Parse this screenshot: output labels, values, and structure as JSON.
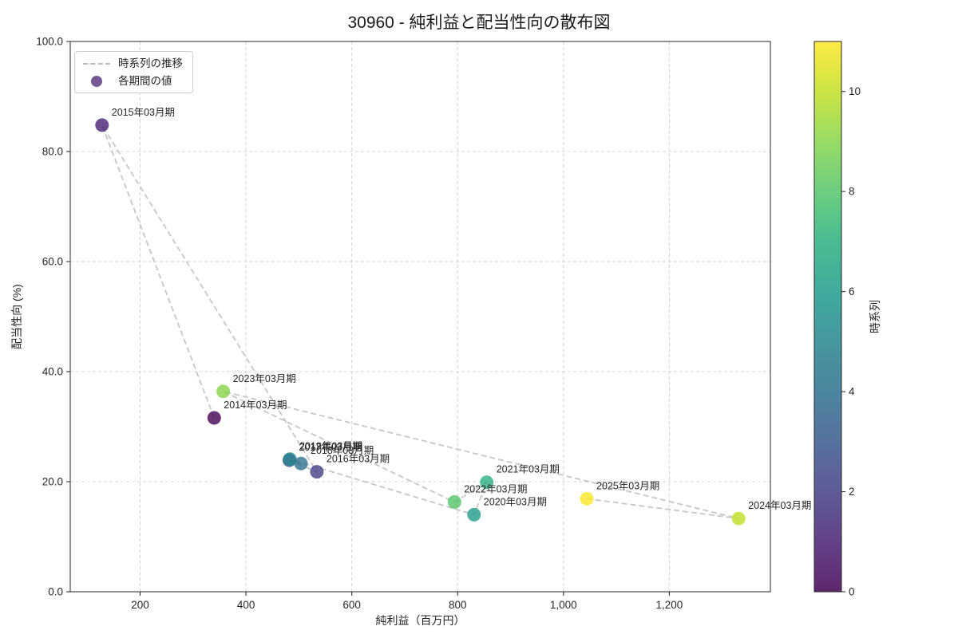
{
  "title": "30960 - 純利益と配当性向の散布図",
  "legend": {
    "series_line_label": "時系列の推移",
    "marker_label": "各期間の値"
  },
  "chart_data": {
    "type": "scatter",
    "title": "30960 - 純利益と配当性向の散布図",
    "xlabel": "純利益（百万円）",
    "ylabel": "配当性向 (%)",
    "xlim": [
      68,
      1391
    ],
    "ylim": [
      0,
      100
    ],
    "grid": true,
    "legend_position": "upper left",
    "x_ticks": [
      200,
      400,
      600,
      800,
      1000,
      1200
    ],
    "x_tick_labels": [
      "200",
      "400",
      "600",
      "800",
      "1,000",
      "1,200"
    ],
    "y_ticks": [
      0,
      20,
      40,
      60,
      80,
      100
    ],
    "y_tick_labels": [
      "0.0",
      "20.0",
      "40.0",
      "60.0",
      "80.0",
      "100.0"
    ],
    "points": [
      {
        "label": "2014年03月期",
        "x": 340,
        "y": 31.6,
        "t": 0
      },
      {
        "label": "2015年03月期",
        "x": 128,
        "y": 84.8,
        "t": 1
      },
      {
        "label": "2016年03月期",
        "x": 534,
        "y": 21.8,
        "t": 2
      },
      {
        "label": "2017年03月期",
        "x": 482,
        "y": 23.9,
        "t": 3
      },
      {
        "label": "2018年03月期",
        "x": 504,
        "y": 23.3,
        "t": 4
      },
      {
        "label": "2019年03月期",
        "x": 483,
        "y": 24.1,
        "t": 5
      },
      {
        "label": "2020年03月期",
        "x": 831,
        "y": 14.0,
        "t": 6
      },
      {
        "label": "2021年03月期",
        "x": 855,
        "y": 19.9,
        "t": 7
      },
      {
        "label": "2022年03月期",
        "x": 794,
        "y": 16.3,
        "t": 8
      },
      {
        "label": "2023年03月期",
        "x": 357,
        "y": 36.4,
        "t": 9
      },
      {
        "label": "2024年03月期",
        "x": 1331,
        "y": 13.3,
        "t": 10
      },
      {
        "label": "2025年03月期",
        "x": 1044,
        "y": 16.9,
        "t": 11
      }
    ],
    "colorbar": {
      "label": "時系列",
      "min": 0,
      "max": 11,
      "ticks": [
        0,
        2,
        4,
        6,
        8,
        10
      ],
      "colormap": "viridis"
    },
    "style": {
      "viridis_colors": [
        "#440154",
        "#482173",
        "#433e85",
        "#38598c",
        "#2d708e",
        "#25858e",
        "#1e9b8a",
        "#2ab07f",
        "#52c569",
        "#86d549",
        "#c2df23",
        "#fde725"
      ],
      "marker_opacity": 0.8,
      "marker_radius": 8.5,
      "trend_line_color": "#bdbdbd",
      "grid_color": "#d3d3d3",
      "spine_color": "#262626",
      "tick_label_color": "#262626",
      "annotation_color": "#262626"
    }
  }
}
